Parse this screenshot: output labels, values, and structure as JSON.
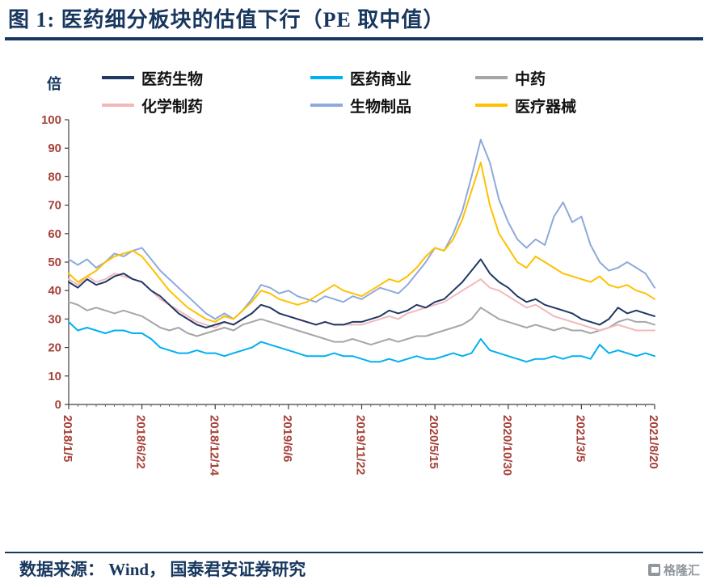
{
  "title": "图 1:  医药细分板块的估值下行（PE 取中值）",
  "unit_label": "倍",
  "footer": {
    "source": "数据来源： Wind， 国泰君安证券研究",
    "logo_text": "格隆汇"
  },
  "colors": {
    "title": "#17375E",
    "rule": "#17375E",
    "axis_line": "#404040",
    "axis_label": "#A5423A",
    "legend_text": "#111111",
    "logo": "#8F969C"
  },
  "chart_data": {
    "type": "line",
    "title": "医药细分板块的估值下行（PE 取中值）",
    "xlabel": "",
    "ylabel": "倍",
    "ylim": [
      0,
      100
    ],
    "ytick_step": 10,
    "grid": false,
    "legend_position": "top",
    "x_tick_labels": [
      "2018/1/5",
      "2018/6/22",
      "2018/12/14",
      "2019/6/6",
      "2019/11/22",
      "2020/5/15",
      "2020/10/30",
      "2021/3/5",
      "2021/8/20"
    ],
    "x_tick_indices": [
      0,
      8,
      16,
      24,
      32,
      40,
      48,
      56,
      64
    ],
    "series": [
      {
        "name": "医药生物",
        "color": "#1F3864",
        "values": [
          43,
          41,
          44,
          42,
          43,
          45,
          46,
          44,
          43,
          40,
          38,
          35,
          32,
          30,
          28,
          27,
          28,
          29,
          28,
          30,
          32,
          35,
          34,
          32,
          31,
          30,
          29,
          28,
          29,
          28,
          28,
          29,
          29,
          30,
          31,
          33,
          32,
          33,
          35,
          34,
          36,
          37,
          40,
          43,
          47,
          51,
          46,
          43,
          41,
          38,
          36,
          37,
          35,
          34,
          33,
          32,
          30,
          29,
          28,
          30,
          34,
          32,
          33,
          32,
          31
        ]
      },
      {
        "name": "医药商业",
        "color": "#00B0F0",
        "values": [
          29,
          26,
          27,
          26,
          25,
          26,
          26,
          25,
          25,
          23,
          20,
          19,
          18,
          18,
          19,
          18,
          18,
          17,
          18,
          19,
          20,
          22,
          21,
          20,
          19,
          18,
          17,
          17,
          17,
          18,
          17,
          17,
          16,
          15,
          15,
          16,
          15,
          16,
          17,
          16,
          16,
          17,
          18,
          17,
          18,
          23,
          19,
          18,
          17,
          16,
          15,
          16,
          16,
          17,
          16,
          17,
          17,
          16,
          21,
          18,
          19,
          18,
          17,
          18,
          17
        ]
      },
      {
        "name": "中药",
        "color": "#A6A6A6",
        "values": [
          36,
          35,
          33,
          34,
          33,
          32,
          33,
          32,
          31,
          29,
          27,
          26,
          27,
          25,
          24,
          25,
          26,
          27,
          26,
          28,
          29,
          30,
          29,
          28,
          27,
          26,
          25,
          24,
          23,
          22,
          22,
          23,
          22,
          21,
          22,
          23,
          22,
          23,
          24,
          24,
          25,
          26,
          27,
          28,
          30,
          34,
          32,
          30,
          29,
          28,
          27,
          28,
          27,
          26,
          27,
          26,
          26,
          25,
          26,
          27,
          29,
          30,
          29,
          29,
          28
        ]
      },
      {
        "name": "化学制药",
        "color": "#F2B8BA",
        "values": [
          44,
          42,
          45,
          43,
          44,
          46,
          45,
          44,
          43,
          40,
          37,
          35,
          33,
          31,
          29,
          28,
          27,
          29,
          28,
          30,
          32,
          35,
          34,
          32,
          31,
          30,
          29,
          28,
          29,
          28,
          28,
          28,
          28,
          29,
          30,
          31,
          30,
          32,
          33,
          34,
          35,
          36,
          38,
          40,
          42,
          44,
          41,
          40,
          38,
          36,
          34,
          35,
          33,
          31,
          30,
          29,
          28,
          27,
          26,
          27,
          28,
          27,
          26,
          26,
          26
        ]
      },
      {
        "name": "生物制品",
        "color": "#8EA9DB",
        "values": [
          51,
          49,
          51,
          48,
          50,
          53,
          52,
          54,
          55,
          51,
          47,
          44,
          41,
          38,
          35,
          32,
          30,
          32,
          30,
          33,
          37,
          42,
          41,
          39,
          40,
          38,
          37,
          36,
          38,
          37,
          36,
          38,
          37,
          39,
          41,
          40,
          39,
          42,
          46,
          50,
          55,
          54,
          60,
          68,
          80,
          93,
          85,
          72,
          64,
          58,
          55,
          58,
          56,
          66,
          71,
          64,
          66,
          56,
          50,
          47,
          48,
          50,
          48,
          46,
          41
        ]
      },
      {
        "name": "医疗器械",
        "color": "#FFC000",
        "values": [
          46,
          43,
          45,
          47,
          50,
          52,
          53,
          54,
          52,
          48,
          44,
          40,
          37,
          34,
          32,
          30,
          29,
          31,
          30,
          33,
          36,
          40,
          39,
          37,
          36,
          35,
          36,
          38,
          40,
          42,
          40,
          39,
          38,
          40,
          42,
          44,
          43,
          45,
          48,
          52,
          55,
          54,
          58,
          65,
          75,
          85,
          70,
          60,
          55,
          50,
          48,
          52,
          50,
          48,
          46,
          45,
          44,
          43,
          45,
          42,
          41,
          42,
          40,
          39,
          37
        ]
      }
    ]
  }
}
